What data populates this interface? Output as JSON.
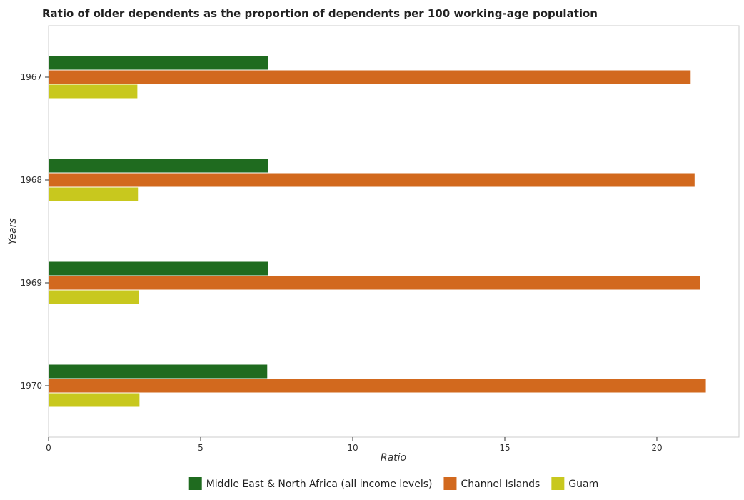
{
  "chart_data": {
    "type": "bar",
    "orientation": "horizontal",
    "title": "Ratio of older dependents as the proportion of dependents per 100 working-age population",
    "xlabel": "Ratio",
    "ylabel": "Years",
    "categories": [
      "1967",
      "1968",
      "1969",
      "1970"
    ],
    "xlim": [
      0,
      22.7
    ],
    "xticks": [
      0,
      5,
      10,
      15,
      20
    ],
    "series": [
      {
        "name": "Middle East & North Africa (all income levels)",
        "color": "#1f6b1f",
        "values": [
          7.23,
          7.23,
          7.21,
          7.19
        ]
      },
      {
        "name": "Channel Islands",
        "color": "#d2691e",
        "values": [
          21.11,
          21.24,
          21.41,
          21.61
        ]
      },
      {
        "name": "Guam",
        "color": "#c8c81e",
        "values": [
          2.92,
          2.94,
          2.97,
          2.99
        ]
      }
    ],
    "legend": "bottom-center",
    "grid": false
  }
}
